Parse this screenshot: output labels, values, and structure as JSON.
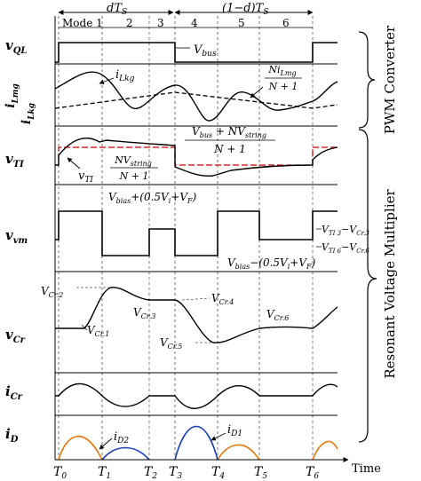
{
  "colors": {
    "trace": "#000000",
    "ntrace": "#cc0000",
    "diode_d2": "#e07a10",
    "diode_d1": "#1a3fb0",
    "guide": "#555555"
  },
  "header": {
    "dTs": "dT",
    "dTs_sub": "S",
    "one_minus_d": "(1−d)T",
    "one_minus_d_sub": "S",
    "mode_prefix": "Mode 1",
    "modes": [
      "2",
      "3",
      "4",
      "5",
      "6"
    ]
  },
  "rows": {
    "vql": {
      "sym": "v",
      "sub": "QL"
    },
    "ilmg": {
      "sym": "i",
      "sub": "Lmg"
    },
    "ilkg": {
      "sym": "i",
      "sub": "Lkg"
    },
    "vti": {
      "sym": "v",
      "sub": "TI"
    },
    "vvm": {
      "sym": "v",
      "sub": "vm"
    },
    "vcr": {
      "sym": "v",
      "sub": "Cr"
    },
    "icr": {
      "sym": "i",
      "sub": "Cr"
    },
    "id": {
      "sym": "i",
      "sub": "D"
    }
  },
  "annotations": {
    "vbus": "V",
    "vbus_sub": "bus",
    "ilkg_a": "i",
    "ilkg_a_sub": "Lkg",
    "frac_num_N": "Ni",
    "frac_num_sub": "Lmg",
    "frac_den": "N + 1",
    "vbus_frac_num": "V",
    "vbus_frac_num_sub": "bus",
    "vbus_frac_num_rest": " + NV",
    "vbus_frac_num_sub2": "string",
    "vbus_frac_den": "N + 1",
    "nv_frac_num": "NV",
    "nv_frac_num_sub": "string",
    "nv_frac_den": "N + 1",
    "vti_arrow": "v",
    "vti_arrow_sub": "TI",
    "vbias_plus": "V",
    "vbias_plus_sub": "bias",
    "vbias_plus_rest": "+(0.5V",
    "vbias_plus_sub2": "i",
    "vbias_plus_rest2": "+V",
    "vbias_plus_sub3": "F",
    "vbias_plus_end": ")",
    "vbias_minus": "V",
    "vbias_minus_sub": "bias",
    "vbias_minus_rest": "−(0.5V",
    "vbias_minus_sub2": "i",
    "vbias_minus_rest2": "+V",
    "vbias_minus_sub3": "F",
    "vbias_minus_end": ")",
    "vti3": "V",
    "vti3_sub": "TI 3",
    "vti3_rest": "−V",
    "vti3_sub2": "Cr.3",
    "vti6": "V",
    "vti6_sub": "TI 6",
    "vti6_rest": "−V",
    "vti6_sub2": "Cr.6",
    "vcr2": "V",
    "vcr2_sub": "Cr.2",
    "vcr1": "V",
    "vcr1_sub": "Cr.1",
    "vcr3": "V",
    "vcr3_sub": "Cr.3",
    "vcr4": "V",
    "vcr4_sub": "Cr.4",
    "vcr5": "V",
    "vcr5_sub": "Cr.5",
    "vcr6": "V",
    "vcr6_sub": "Cr.6",
    "id2": "i",
    "id2_sub": "D2",
    "id1": "i",
    "id1_sub": "D1"
  },
  "time_axis": {
    "ticks": [
      {
        "sym": "T",
        "sub": "0"
      },
      {
        "sym": "T",
        "sub": "1"
      },
      {
        "sym": "T",
        "sub": "2"
      },
      {
        "sym": "T",
        "sub": "3"
      },
      {
        "sym": "T",
        "sub": "4"
      },
      {
        "sym": "T",
        "sub": "5"
      },
      {
        "sym": "T",
        "sub": "6"
      }
    ],
    "label": "Time"
  },
  "brackets": {
    "pwm": "PWM Converter",
    "rvm": "Resonant Voltage Multiplier"
  }
}
